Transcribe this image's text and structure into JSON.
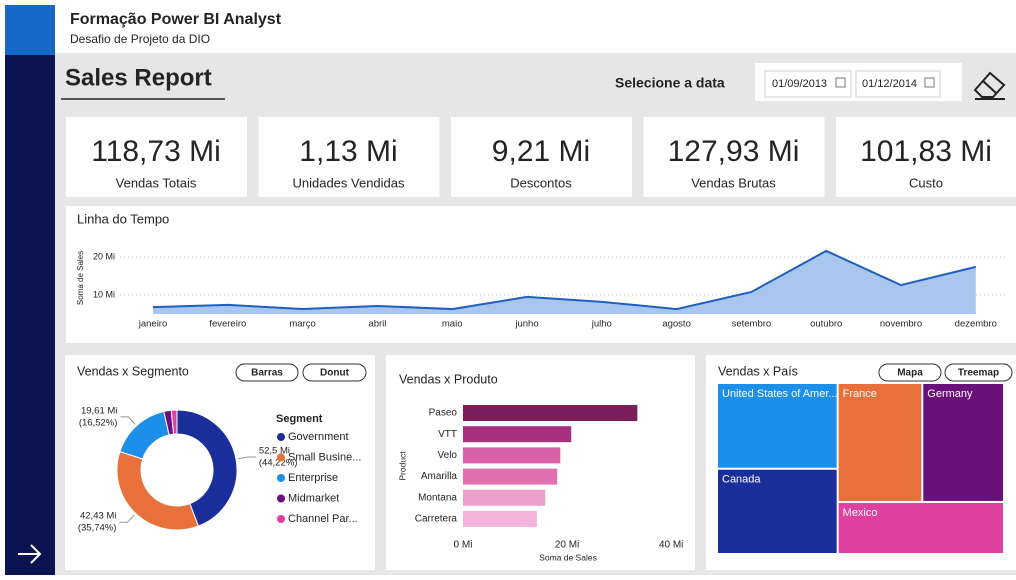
{
  "header": {
    "title": "Formação Power BI Analyst",
    "subtitle": "Desafio de Projeto da DIO"
  },
  "report": {
    "title": "Sales Report",
    "date_label": "Selecione a data",
    "date_start": "01/09/2013",
    "date_end": "01/12/2014"
  },
  "kpis": [
    {
      "value": "118,73 Mi",
      "label": "Vendas Totais"
    },
    {
      "value": "1,13 Mi",
      "label": "Unidades Vendidas"
    },
    {
      "value": "9,21 Mi",
      "label": "Descontos"
    },
    {
      "value": "127,93 Mi",
      "label": "Vendas Brutas"
    },
    {
      "value": "101,83 Mi",
      "label": "Custo"
    }
  ],
  "chart_data": [
    {
      "type": "area",
      "title": "Linha do Tempo",
      "y_label": "Soma de Sales",
      "categories": [
        "janeiro",
        "fevereiro",
        "março",
        "abril",
        "maio",
        "junho",
        "julho",
        "agosto",
        "setembro",
        "outubro",
        "novembro",
        "dezembro"
      ],
      "values": [
        6.8,
        7.4,
        6.3,
        7.1,
        6.3,
        9.5,
        8.2,
        6.3,
        10.8,
        21.6,
        12.6,
        17.4
      ],
      "color": "#1f5fbf",
      "fill": "#a9c7ee",
      "ylim": [
        5,
        23
      ],
      "yticks": [
        {
          "value": 10,
          "label": "10 Mi"
        },
        {
          "value": 20,
          "label": "20 Mi"
        }
      ],
      "grid": true
    },
    {
      "type": "pie",
      "title": "Vendas x Segmento",
      "buttons": [
        "Barras",
        "Donut"
      ],
      "legend_title": "Segment",
      "categories": [
        "Government",
        "Small Busine...",
        "Enterprise",
        "Midmarket",
        "Channel Par..."
      ],
      "values": [
        52.5,
        42.43,
        19.61,
        2.38,
        1.81
      ],
      "value_labels": [
        "52,5 Mi",
        "42,43 Mi",
        "19,61 Mi",
        null,
        null
      ],
      "share_labels": [
        "(44,22%)",
        "(35,74%)",
        "(16,52%)",
        null,
        null
      ],
      "colors": [
        "#1a2f9c",
        "#e8703a",
        "#1e8fe8",
        "#6b0f7a",
        "#e040a0"
      ]
    },
    {
      "type": "hbar",
      "title": "Vendas x Produto",
      "x_label": "Soma de Sales",
      "y_label": "Product",
      "categories": [
        "Paseo",
        "VTT",
        "Velo",
        "Amarilla",
        "Montana",
        "Carretera"
      ],
      "values": [
        33.5,
        20.8,
        18.7,
        18.1,
        15.8,
        14.2
      ],
      "colors": [
        "#7a1f5c",
        "#a8307e",
        "#d760a8",
        "#e070b0",
        "#eea0cc",
        "#f2b4da"
      ],
      "xlim": [
        0,
        44
      ],
      "xticks": [
        {
          "value": 0,
          "label": "0 Mi"
        },
        {
          "value": 20,
          "label": "20 Mi"
        },
        {
          "value": 40,
          "label": "40 Mi"
        }
      ]
    },
    {
      "type": "treemap",
      "title": "Vendas x País",
      "buttons": [
        "Mapa",
        "Treemap"
      ],
      "categories": [
        "United States of Amer...",
        "Canada",
        "France",
        "Germany",
        "Mexico"
      ],
      "values": [
        25.03,
        24.89,
        24.35,
        23.51,
        20.95
      ],
      "colors": [
        "#1e8fe8",
        "#1a2f9c",
        "#e8703a",
        "#6b0f7a",
        "#e040a0"
      ]
    }
  ]
}
